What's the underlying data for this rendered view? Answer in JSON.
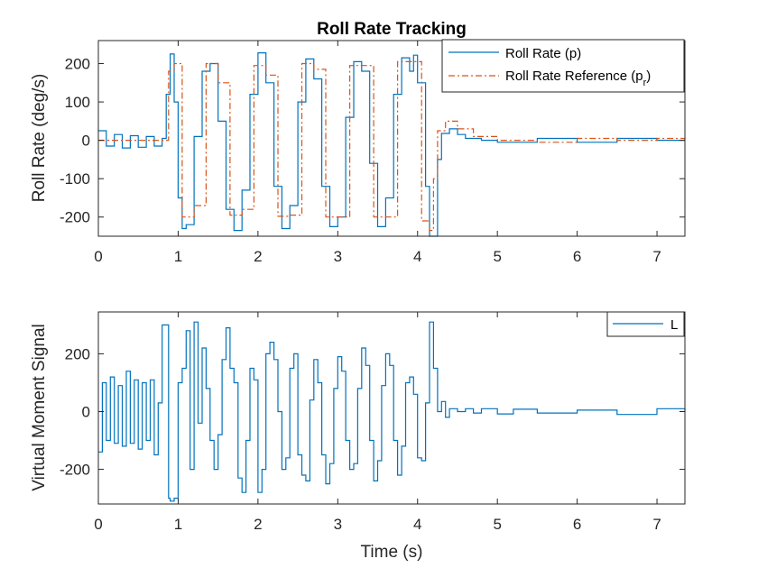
{
  "chart_data": [
    {
      "type": "line",
      "title": "Roll Rate Tracking",
      "xlabel": "",
      "ylabel": "Roll Rate (deg/s)",
      "xlim": [
        0,
        7.35
      ],
      "ylim": [
        -250,
        260
      ],
      "xticks": [
        0,
        1,
        2,
        3,
        4,
        5,
        6,
        7
      ],
      "yticks": [
        -200,
        -100,
        0,
        100,
        200
      ],
      "grid": false,
      "legend_position": "top-right",
      "legend": {
        "p_label": "Roll Rate (p)",
        "ref_label_main": "Roll Rate Reference (p",
        "ref_label_sub": "r",
        "ref_label_end": ")"
      },
      "series": [
        {
          "name": "Roll Rate (p)",
          "color": "#0072BD",
          "style": "solid",
          "x": [
            0,
            0.1,
            0.2,
            0.3,
            0.4,
            0.5,
            0.6,
            0.7,
            0.8,
            0.85,
            0.9,
            0.95,
            1.0,
            1.05,
            1.1,
            1.2,
            1.3,
            1.4,
            1.5,
            1.6,
            1.7,
            1.8,
            1.9,
            2.0,
            2.1,
            2.2,
            2.3,
            2.4,
            2.5,
            2.6,
            2.7,
            2.8,
            2.9,
            3.0,
            3.1,
            3.2,
            3.3,
            3.4,
            3.5,
            3.6,
            3.7,
            3.8,
            3.9,
            3.95,
            4.0,
            4.1,
            4.15,
            4.2,
            4.25,
            4.3,
            4.4,
            4.5,
            4.6,
            4.8,
            5.0,
            5.5,
            6.0,
            6.5,
            7.0,
            7.35
          ],
          "y": [
            25,
            -15,
            15,
            -20,
            12,
            -18,
            10,
            -15,
            5,
            120,
            225,
            100,
            -150,
            -230,
            -220,
            10,
            180,
            200,
            50,
            -180,
            -235,
            -130,
            120,
            228,
            150,
            -120,
            -230,
            -170,
            100,
            212,
            160,
            -120,
            -225,
            -200,
            60,
            205,
            180,
            -60,
            -225,
            -150,
            120,
            215,
            180,
            222,
            150,
            -120,
            -250,
            -250,
            -50,
            18,
            30,
            15,
            5,
            0,
            -5,
            5,
            -5,
            5,
            0,
            0
          ]
        },
        {
          "name": "Roll Rate Reference (pr)",
          "color": "#D95319",
          "style": "dash-dot",
          "x": [
            0,
            0.85,
            0.88,
            0.95,
            1.05,
            1.2,
            1.35,
            1.5,
            1.65,
            1.8,
            1.95,
            2.1,
            2.25,
            2.4,
            2.55,
            2.7,
            2.85,
            3.0,
            3.15,
            3.3,
            3.45,
            3.6,
            3.75,
            3.9,
            4.05,
            4.15,
            4.2,
            4.25,
            4.35,
            4.5,
            4.7,
            5.0,
            5.5,
            6.0,
            6.5,
            7.0,
            7.35
          ],
          "y": [
            0,
            0,
            180,
            200,
            -200,
            -170,
            200,
            150,
            -195,
            -180,
            195,
            170,
            -198,
            -195,
            200,
            185,
            -200,
            -200,
            195,
            195,
            -200,
            -200,
            205,
            205,
            -210,
            -235,
            -100,
            25,
            50,
            30,
            10,
            0,
            -5,
            5,
            0,
            5,
            -5
          ]
        }
      ]
    },
    {
      "type": "line",
      "title": "",
      "xlabel": "Time (s)",
      "ylabel": "Virtual Moment Signal",
      "xlim": [
        0,
        7.35
      ],
      "ylim": [
        -320,
        345
      ],
      "xticks": [
        0,
        1,
        2,
        3,
        4,
        5,
        6,
        7
      ],
      "yticks": [
        -200,
        0,
        200
      ],
      "grid": false,
      "legend_position": "top-right",
      "legend": {
        "l_label": "L"
      },
      "series": [
        {
          "name": "L",
          "color": "#0072BD",
          "style": "solid",
          "x": [
            0,
            0.05,
            0.1,
            0.15,
            0.2,
            0.25,
            0.3,
            0.35,
            0.4,
            0.45,
            0.5,
            0.55,
            0.6,
            0.65,
            0.7,
            0.75,
            0.8,
            0.82,
            0.88,
            0.9,
            0.95,
            1.0,
            1.05,
            1.1,
            1.15,
            1.2,
            1.25,
            1.3,
            1.35,
            1.4,
            1.45,
            1.5,
            1.55,
            1.6,
            1.65,
            1.7,
            1.75,
            1.8,
            1.85,
            1.9,
            1.95,
            2.0,
            2.05,
            2.1,
            2.15,
            2.2,
            2.25,
            2.3,
            2.35,
            2.4,
            2.45,
            2.5,
            2.55,
            2.6,
            2.65,
            2.7,
            2.75,
            2.8,
            2.85,
            2.9,
            2.95,
            3.0,
            3.05,
            3.1,
            3.15,
            3.2,
            3.25,
            3.3,
            3.35,
            3.4,
            3.45,
            3.5,
            3.55,
            3.6,
            3.65,
            3.7,
            3.75,
            3.8,
            3.85,
            3.9,
            3.95,
            4.0,
            4.05,
            4.1,
            4.15,
            4.2,
            4.25,
            4.3,
            4.35,
            4.4,
            4.5,
            4.6,
            4.7,
            4.8,
            5.0,
            5.2,
            5.5,
            6.0,
            6.5,
            7.0,
            7.35
          ],
          "y": [
            -140,
            100,
            -100,
            120,
            -110,
            90,
            -120,
            140,
            -110,
            110,
            -130,
            100,
            -100,
            110,
            -150,
            30,
            300,
            300,
            -300,
            -310,
            -300,
            100,
            150,
            280,
            -200,
            310,
            -40,
            220,
            80,
            -100,
            -200,
            -80,
            180,
            290,
            150,
            100,
            -230,
            -280,
            -100,
            150,
            110,
            -280,
            -200,
            200,
            240,
            180,
            0,
            -200,
            -160,
            150,
            200,
            -150,
            -220,
            -240,
            40,
            180,
            100,
            -150,
            -250,
            -180,
            80,
            190,
            140,
            -100,
            -200,
            -180,
            80,
            220,
            160,
            -100,
            -240,
            -170,
            90,
            200,
            160,
            -100,
            -220,
            -120,
            100,
            120,
            60,
            -160,
            -170,
            30,
            310,
            150,
            0,
            35,
            -20,
            10,
            0,
            10,
            -5,
            10,
            -8,
            8,
            -5,
            5,
            -10,
            10,
            0
          ]
        }
      ]
    }
  ]
}
